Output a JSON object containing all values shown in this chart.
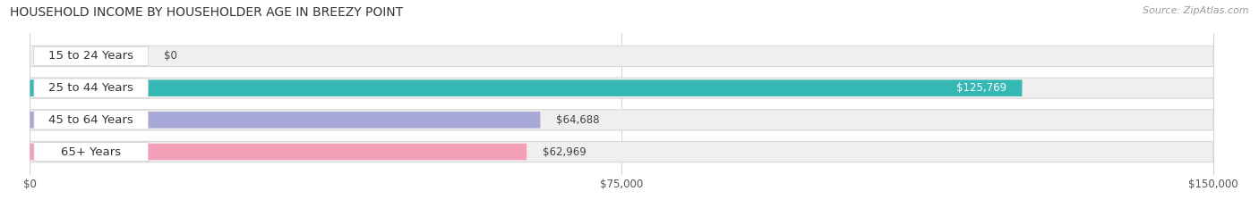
{
  "title": "HOUSEHOLD INCOME BY HOUSEHOLDER AGE IN BREEZY POINT",
  "source": "Source: ZipAtlas.com",
  "categories": [
    "15 to 24 Years",
    "25 to 44 Years",
    "45 to 64 Years",
    "65+ Years"
  ],
  "values": [
    0,
    125769,
    64688,
    62969
  ],
  "bar_colors": [
    "#c9a8d4",
    "#35b8b4",
    "#a8a8d8",
    "#f4a0b8"
  ],
  "xlim": [
    0,
    150000
  ],
  "xticks": [
    0,
    75000,
    150000
  ],
  "xtick_labels": [
    "$0",
    "$75,000",
    "$150,000"
  ],
  "value_labels": [
    "$0",
    "$125,769",
    "$64,688",
    "$62,969"
  ],
  "value_inside": [
    false,
    true,
    false,
    false
  ],
  "title_fontsize": 10,
  "label_fontsize": 9.5,
  "value_fontsize": 8.5,
  "source_fontsize": 8,
  "track_color": "#efefef",
  "track_border_color": "#d8d8d8",
  "grid_color": "#d0d0d0"
}
